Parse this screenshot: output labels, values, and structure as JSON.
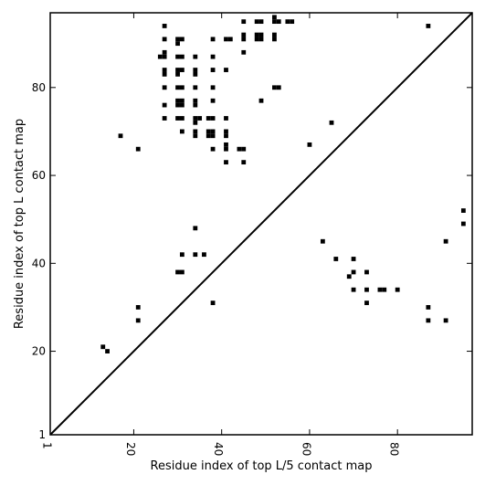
{
  "chart_data": {
    "type": "scatter",
    "title": "",
    "xlabel": "Residue index of top L/5 contact map",
    "ylabel": "Residue index of top L contact map",
    "xlim": [
      1,
      97
    ],
    "ylim": [
      1,
      97
    ],
    "xticks": [
      1,
      20,
      40,
      60,
      80
    ],
    "yticks": [
      1,
      20,
      40,
      60,
      80
    ],
    "xtick_labels": [
      "1",
      "20",
      "40",
      "60",
      "80"
    ],
    "ytick_labels": [
      "1",
      "20",
      "40",
      "60",
      "80"
    ],
    "grid": false,
    "legend": "none",
    "diagonal": true,
    "colors": {
      "marker": "#000000",
      "line": "#000000",
      "frame": "#000000",
      "background": "#ffffff"
    },
    "series": [
      {
        "part": "upper-left",
        "points": [
          [
            13,
            21
          ],
          [
            14,
            20
          ],
          [
            17,
            69
          ],
          [
            21,
            66
          ],
          [
            27,
            94
          ],
          [
            27,
            91
          ],
          [
            26,
            87
          ],
          [
            27,
            87
          ],
          [
            27,
            88
          ],
          [
            27,
            84
          ],
          [
            27,
            83
          ],
          [
            27,
            80
          ],
          [
            27,
            76
          ],
          [
            27,
            73
          ],
          [
            30,
            91
          ],
          [
            31,
            91
          ],
          [
            30,
            90
          ],
          [
            30,
            87
          ],
          [
            31,
            87
          ],
          [
            30,
            84
          ],
          [
            31,
            84
          ],
          [
            30,
            83
          ],
          [
            30,
            80
          ],
          [
            31,
            80
          ],
          [
            30,
            77
          ],
          [
            31,
            77
          ],
          [
            30,
            76
          ],
          [
            31,
            76
          ],
          [
            30,
            73
          ],
          [
            31,
            73
          ],
          [
            31,
            70
          ],
          [
            34,
            87
          ],
          [
            34,
            84
          ],
          [
            34,
            83
          ],
          [
            34,
            80
          ],
          [
            34,
            77
          ],
          [
            34,
            76
          ],
          [
            34,
            73
          ],
          [
            35,
            73
          ],
          [
            34,
            72
          ],
          [
            34,
            70
          ],
          [
            34,
            69
          ],
          [
            37,
            73
          ],
          [
            38,
            73
          ],
          [
            37,
            70
          ],
          [
            38,
            70
          ],
          [
            37,
            69
          ],
          [
            38,
            69
          ],
          [
            38,
            66
          ],
          [
            38,
            91
          ],
          [
            38,
            87
          ],
          [
            38,
            84
          ],
          [
            38,
            80
          ],
          [
            38,
            77
          ],
          [
            41,
            91
          ],
          [
            42,
            91
          ],
          [
            41,
            84
          ],
          [
            41,
            73
          ],
          [
            41,
            70
          ],
          [
            41,
            69
          ],
          [
            41,
            67
          ],
          [
            41,
            66
          ],
          [
            41,
            63
          ],
          [
            44,
            66
          ],
          [
            45,
            66
          ],
          [
            45,
            63
          ],
          [
            45,
            95
          ],
          [
            45,
            92
          ],
          [
            45,
            91
          ],
          [
            45,
            88
          ],
          [
            48,
            95
          ],
          [
            49,
            95
          ],
          [
            48,
            92
          ],
          [
            49,
            92
          ],
          [
            48,
            91
          ],
          [
            49,
            91
          ],
          [
            49,
            77
          ],
          [
            52,
            96
          ],
          [
            52,
            95
          ],
          [
            53,
            95
          ],
          [
            52,
            92
          ],
          [
            52,
            91
          ],
          [
            52,
            80
          ],
          [
            53,
            80
          ],
          [
            55,
            95
          ],
          [
            56,
            95
          ],
          [
            60,
            67
          ],
          [
            65,
            72
          ],
          [
            87,
            94
          ]
        ]
      },
      {
        "part": "lower-right",
        "points": [
          [
            21,
            30
          ],
          [
            21,
            27
          ],
          [
            30,
            38
          ],
          [
            31,
            38
          ],
          [
            31,
            42
          ],
          [
            34,
            48
          ],
          [
            34,
            42
          ],
          [
            36,
            42
          ],
          [
            38,
            31
          ],
          [
            63,
            45
          ],
          [
            66,
            41
          ],
          [
            69,
            37
          ],
          [
            70,
            41
          ],
          [
            70,
            38
          ],
          [
            70,
            34
          ],
          [
            73,
            38
          ],
          [
            73,
            34
          ],
          [
            73,
            31
          ],
          [
            76,
            34
          ],
          [
            77,
            34
          ],
          [
            80,
            34
          ],
          [
            87,
            30
          ],
          [
            87,
            27
          ],
          [
            91,
            45
          ],
          [
            91,
            27
          ],
          [
            95,
            52
          ],
          [
            95,
            49
          ]
        ]
      }
    ]
  }
}
